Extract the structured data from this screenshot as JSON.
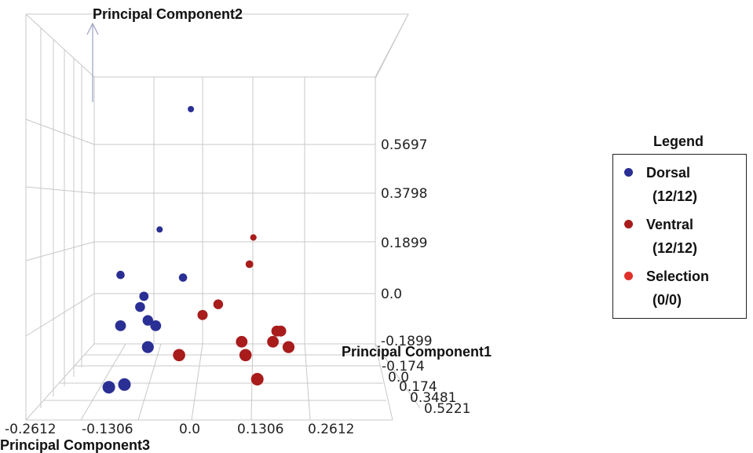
{
  "chart_data": {
    "type": "scatter",
    "axes": {
      "x": {
        "label": "Principal Component3",
        "ticks": [
          "-0.2612",
          "-0.1306",
          "0.0",
          "0.1306",
          "0.2612"
        ]
      },
      "y": {
        "label": "Principal Component2",
        "ticks": [
          "0.5697",
          "0.3798",
          "0.1899",
          "0.0",
          "-0.1899"
        ]
      },
      "z": {
        "label": "Principal Component1",
        "ticks": [
          "-0.174",
          "0.0",
          "0.174",
          "0.3481",
          "0.5221"
        ]
      }
    },
    "legend": {
      "title": "Legend",
      "placement": "right",
      "items": [
        {
          "name": "Dorsal",
          "count": "(12/12)",
          "color": "#2a2f94"
        },
        {
          "name": "Ventral",
          "count": "(12/12)",
          "color": "#a81c1c"
        },
        {
          "name": "Selection",
          "count": "(0/0)",
          "color": "#e0302a"
        }
      ]
    },
    "series": [
      {
        "name": "Dorsal",
        "color": "#2a2f94",
        "points": [
          {
            "x": -0.03,
            "y": 0.69,
            "z": 0.0
          },
          {
            "x": -0.11,
            "y": 0.24,
            "z": 0.0
          },
          {
            "x": -0.05,
            "y": 0.06,
            "z": 0.0
          },
          {
            "x": -0.21,
            "y": 0.07,
            "z": 0.0
          },
          {
            "x": -0.15,
            "y": -0.01,
            "z": 0.0
          },
          {
            "x": -0.16,
            "y": -0.05,
            "z": 0.0
          },
          {
            "x": -0.14,
            "y": -0.1,
            "z": 0.0
          },
          {
            "x": -0.12,
            "y": -0.12,
            "z": 0.0
          },
          {
            "x": -0.21,
            "y": -0.12,
            "z": 0.0
          },
          {
            "x": -0.14,
            "y": -0.2,
            "z": 0.0
          },
          {
            "x": -0.2,
            "y": -0.34,
            "z": 0.0
          },
          {
            "x": -0.24,
            "y": -0.35,
            "z": 0.0
          }
        ]
      },
      {
        "name": "Ventral",
        "color": "#a81c1c",
        "points": [
          {
            "x": 0.13,
            "y": 0.21,
            "z": 0.0
          },
          {
            "x": 0.12,
            "y": 0.11,
            "z": 0.0
          },
          {
            "x": 0.04,
            "y": -0.04,
            "z": 0.0
          },
          {
            "x": 0.0,
            "y": -0.08,
            "z": 0.0
          },
          {
            "x": 0.1,
            "y": -0.18,
            "z": 0.0
          },
          {
            "x": 0.11,
            "y": -0.23,
            "z": 0.0
          },
          {
            "x": -0.06,
            "y": -0.23,
            "z": 0.0
          },
          {
            "x": 0.2,
            "y": -0.14,
            "z": 0.0
          },
          {
            "x": 0.19,
            "y": -0.14,
            "z": 0.0
          },
          {
            "x": 0.18,
            "y": -0.18,
            "z": 0.0
          },
          {
            "x": 0.22,
            "y": -0.2,
            "z": 0.0
          },
          {
            "x": 0.14,
            "y": -0.32,
            "z": 0.0
          }
        ]
      }
    ]
  }
}
